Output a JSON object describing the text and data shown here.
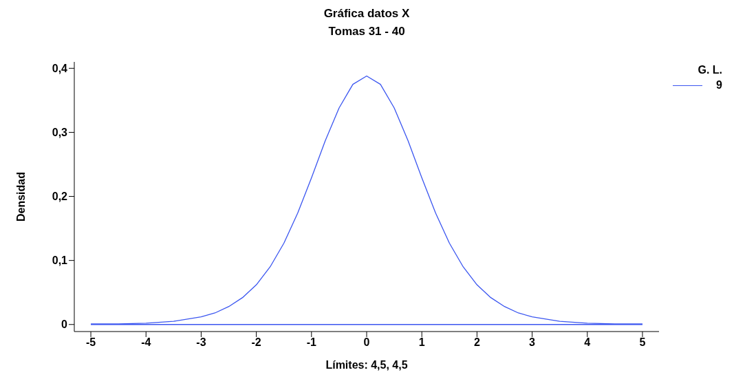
{
  "chart_data": {
    "type": "line",
    "title": "Gráfica datos X",
    "subtitle": "Tomas 31 - 40",
    "xlabel": "Límites: 4,5, 4,5",
    "ylabel": "Densidad",
    "legend_title": "G. L.",
    "legend": "top right",
    "marker": "none",
    "line_style": "solid",
    "xlim": [
      -5.3,
      5.3
    ],
    "xticks": [
      -5,
      -4,
      -3,
      -2,
      -1,
      0,
      1,
      2,
      3,
      4,
      5
    ],
    "ylim": [
      -0.011,
      0.41
    ],
    "yticks": [
      {
        "value": 0,
        "label": "0"
      },
      {
        "value": 0.1,
        "label": "0,1"
      },
      {
        "value": 0.2,
        "label": "0,2"
      },
      {
        "value": 0.3,
        "label": "0,3"
      },
      {
        "value": 0.4,
        "label": "0,4"
      }
    ],
    "series": [
      {
        "name": "9",
        "color": "#3a55f0",
        "x": [
          -5,
          -4.5,
          -4,
          -3.5,
          -3,
          -2.75,
          -2.5,
          -2.25,
          -2,
          -1.75,
          -1.5,
          -1.25,
          -1,
          -0.75,
          -0.5,
          -0.25,
          0,
          0.25,
          0.5,
          0.75,
          1,
          1.25,
          1.5,
          1.75,
          2,
          2.25,
          2.5,
          2.75,
          3,
          3.5,
          4,
          4.5,
          5
        ],
        "values": [
          0.001,
          0.001,
          0.002,
          0.005,
          0.012,
          0.018,
          0.028,
          0.042,
          0.062,
          0.09,
          0.127,
          0.174,
          0.229,
          0.287,
          0.338,
          0.375,
          0.388,
          0.375,
          0.338,
          0.287,
          0.229,
          0.174,
          0.127,
          0.09,
          0.062,
          0.042,
          0.028,
          0.018,
          0.012,
          0.005,
          0.002,
          0.001,
          0.001
        ]
      },
      {
        "color": "#3a55f0",
        "x": [
          -5,
          5
        ],
        "values": [
          0,
          0
        ]
      }
    ]
  }
}
